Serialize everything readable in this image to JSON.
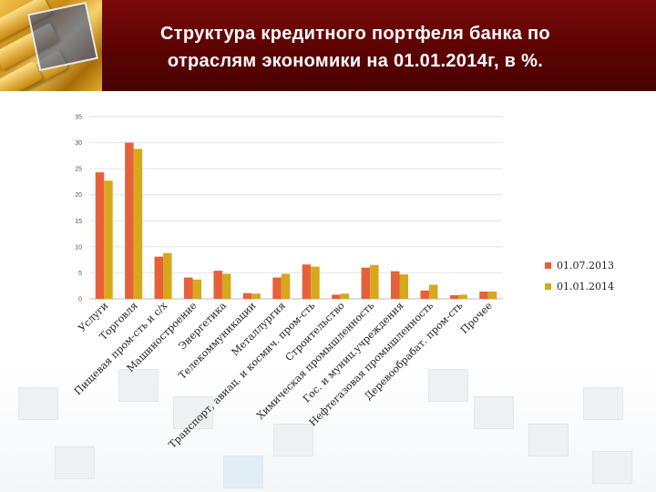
{
  "header": {
    "title_line1": "Структура кредитного портфеля банка  по",
    "title_line2": "отраслям экономики на 01.01.2014г, в %."
  },
  "chart_data": {
    "type": "bar",
    "title": "Структура кредитного портфеля банка по отраслям экономики на 01.01.2014г, в %.",
    "xlabel": "",
    "ylabel": "",
    "ylim": [
      0,
      35
    ],
    "yticks": [
      0,
      5,
      10,
      15,
      20,
      25,
      30,
      35
    ],
    "legend_position": "right",
    "categories": [
      "Услуги",
      "Торговля",
      "Пищевая пром-сть и с/х",
      "Машиностроение",
      "Энергетика",
      "Телекоммуникации",
      "Металлургия",
      "Транспорт, авиац. и космич. пром-сть",
      "Строительство",
      "Химическая промышленность",
      "Гос. и муниц.учреждения",
      "Нефтегазовая промышленность",
      "Деревообрабат. пром-сть",
      "Прочее"
    ],
    "series": [
      {
        "name": "01.07.2013",
        "color": "#e8603a",
        "values": [
          24.3,
          30.0,
          8.1,
          4.1,
          5.4,
          1.1,
          4.1,
          6.6,
          0.8,
          6.0,
          5.3,
          1.6,
          0.7,
          1.4
        ]
      },
      {
        "name": "01.01.2014",
        "color": "#d6a81c",
        "values": [
          22.7,
          28.8,
          8.8,
          3.7,
          4.8,
          1.0,
          4.8,
          6.2,
          1.0,
          6.5,
          4.7,
          2.7,
          0.8,
          1.4
        ]
      }
    ]
  }
}
